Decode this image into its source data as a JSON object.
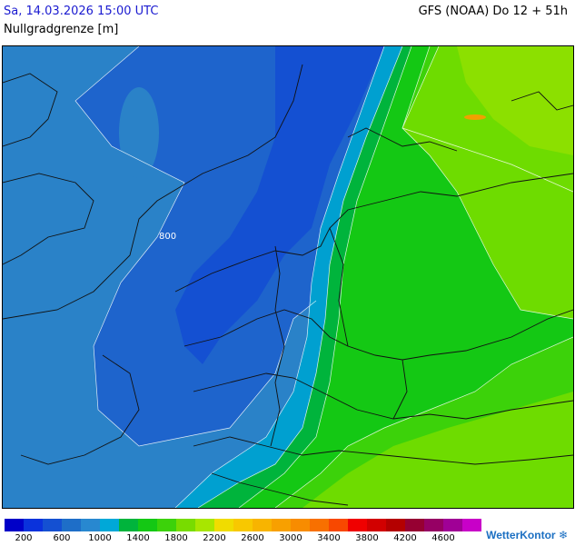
{
  "header": {
    "datetime": "Sa, 14.03.2026 15:00 UTC",
    "model": "GFS (NOAA) Do 12 + 51h",
    "parameter": "Nullgradgrenze [m]"
  },
  "map": {
    "contour_label": "800",
    "colors": {
      "c200": "#0a14c8",
      "c400": "#1432d2",
      "c600": "#1450d2",
      "c800": "#1e64cc",
      "c1000": "#2a82c8",
      "c1200": "#00a0d0",
      "c1400": "#00b43c",
      "c1600": "#14c814",
      "c1800": "#3cd20a",
      "c2000": "#6edc00",
      "c2200": "#8ce000"
    }
  },
  "legend": {
    "colors": [
      "#0000c8",
      "#0a32dc",
      "#1450d2",
      "#1e6ec8",
      "#2888d0",
      "#00a8d8",
      "#00b43c",
      "#14c814",
      "#3cd20a",
      "#78dc00",
      "#a8e600",
      "#f0dc00",
      "#f8c800",
      "#f8b400",
      "#f8a000",
      "#f88c00",
      "#f87000",
      "#f84800",
      "#f00000",
      "#d20000",
      "#b40000",
      "#960032",
      "#960064",
      "#a00096",
      "#c800c8"
    ],
    "ticks": [
      "200",
      "600",
      "1000",
      "1400",
      "1800",
      "2200",
      "2600",
      "3000",
      "3400",
      "3800",
      "4200",
      "4600"
    ]
  },
  "brand": {
    "name": "WetterKontor",
    "mark": "❄"
  }
}
